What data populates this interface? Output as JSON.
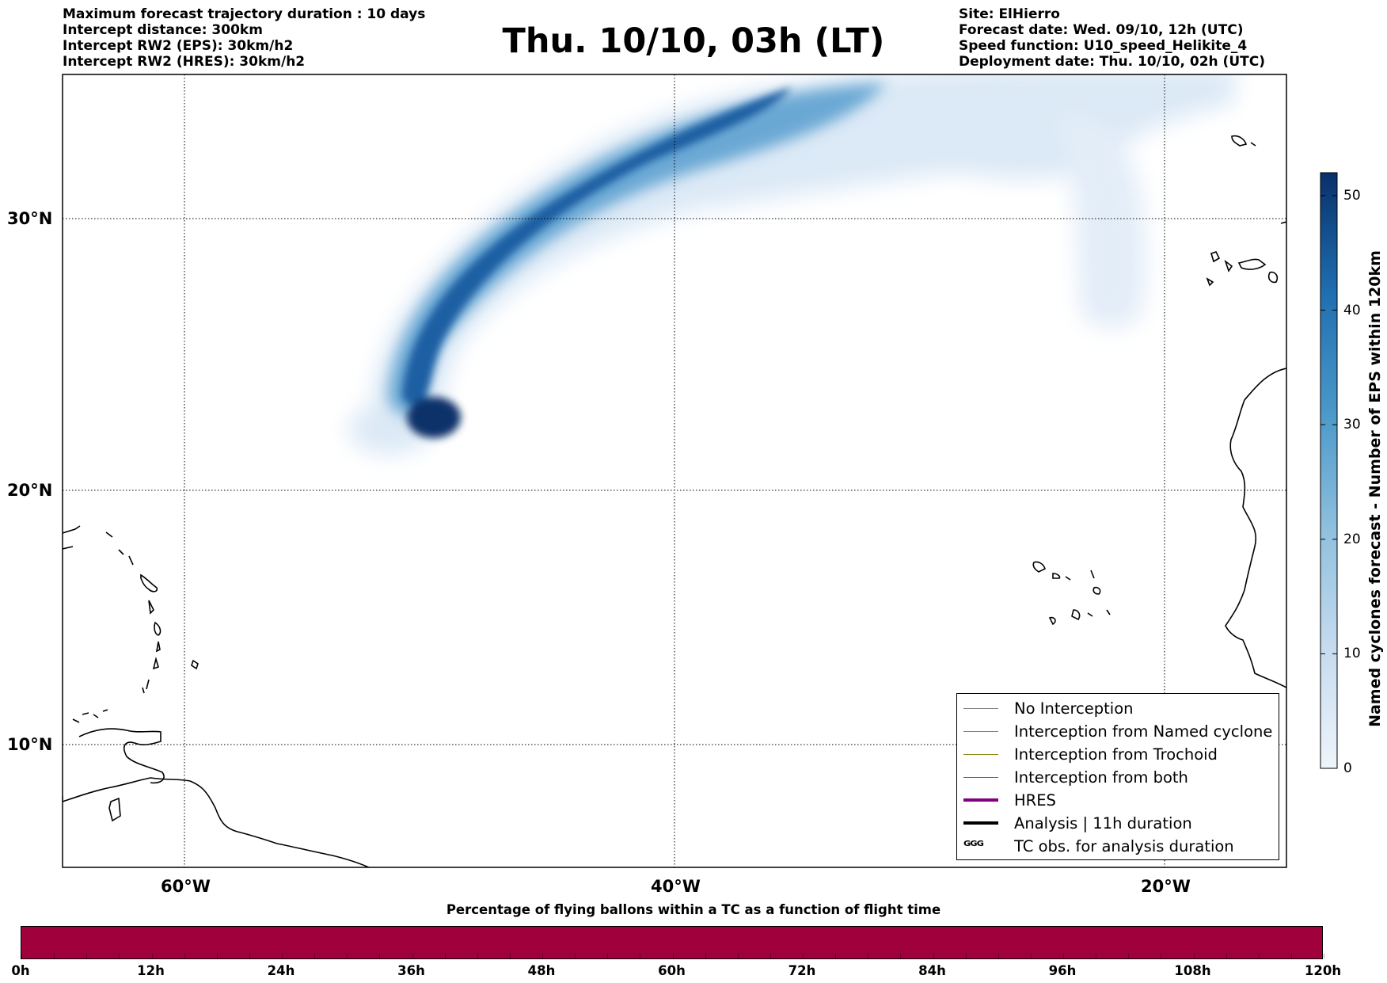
{
  "header": {
    "left_lines": [
      "Maximum forecast trajectory duration : 10 days",
      "Intercept distance: 300km",
      "Intercept RW2 (EPS):  30km/h2",
      "Intercept RW2 (HRES): 30km/h2"
    ],
    "title": "Thu. 10/10, 03h (LT)",
    "right_lines": [
      "Site: ElHierro",
      "Forecast date: Wed. 09/10, 12h (UTC)",
      "Speed function: U10_speed_Helikite_4",
      "Deployment date: Thu. 10/10, 02h (UTC)"
    ]
  },
  "map": {
    "lon_range": [
      -65,
      -15
    ],
    "lat_range": [
      5,
      35.5
    ],
    "lon_ticks": [
      {
        "value": -60,
        "label": "60°W"
      },
      {
        "value": -40,
        "label": "40°W"
      },
      {
        "value": -20,
        "label": "20°W"
      }
    ],
    "lat_ticks": [
      {
        "value": 30,
        "label": "30°N"
      },
      {
        "value": 20,
        "label": "20°N"
      },
      {
        "value": 10,
        "label": "10°N"
      }
    ],
    "gridlines": true,
    "land_outline_color": "#000000"
  },
  "legend": {
    "position": "lower-right",
    "items": [
      {
        "label": "No Interception",
        "color": "#808080",
        "style": "thin"
      },
      {
        "label": "Interception from Named cyclone",
        "color": "#e8621e",
        "style": "thin"
      },
      {
        "label": "Interception from Trochoid",
        "color": "#8a8a1a",
        "style": "thin"
      },
      {
        "label": "Interception from both",
        "color": "#2a8a2a",
        "style": "thin"
      },
      {
        "label": "HRES",
        "color": "#800080",
        "style": "thick"
      },
      {
        "label": "Analysis | 11h duration",
        "color": "#000000",
        "style": "thick"
      },
      {
        "label": "TC obs. for analysis duration",
        "color": "#000000",
        "style": "glyph",
        "glyph": "ᴳᴳᴳ"
      }
    ]
  },
  "colorbar": {
    "title": "Named cyclones forecast - Number of EPS within 120km",
    "min": 0,
    "max": 52,
    "ticks": [
      "0",
      "10",
      "20",
      "30",
      "40",
      "50"
    ],
    "tick_values": [
      0,
      10,
      20,
      30,
      40,
      50
    ],
    "color_low": "#e6eff9",
    "color_high": "#08306b"
  },
  "timebar": {
    "title": "Percentage of flying ballons within a TC as a function of flight time",
    "color": "#a0003c",
    "ticks": [
      "0h",
      "12h",
      "24h",
      "36h",
      "48h",
      "60h",
      "72h",
      "84h",
      "96h",
      "108h",
      "120h"
    ],
    "max_hours": 120
  }
}
